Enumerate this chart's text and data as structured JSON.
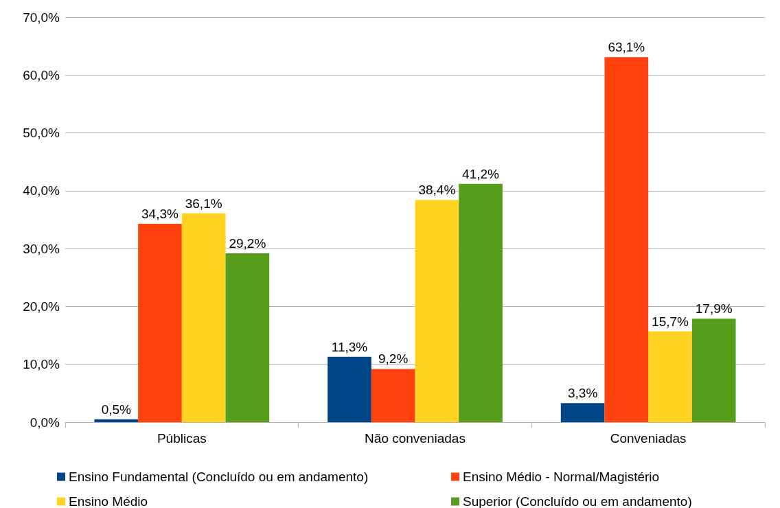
{
  "chart_data": {
    "type": "bar",
    "categories": [
      "Públicas",
      "Não conveniadas",
      "Conveniadas"
    ],
    "series": [
      {
        "name": "Ensino Fundamental (Concluído ou em andamento)",
        "color": "#004586",
        "values": [
          0.5,
          11.3,
          3.3
        ],
        "value_labels": [
          "0,5%",
          "11,3%",
          "3,3%"
        ]
      },
      {
        "name": "Ensino Médio - Normal/Magistério",
        "color": "#ff420e",
        "values": [
          34.3,
          9.2,
          63.1
        ],
        "value_labels": [
          "34,3%",
          "9,2%",
          "63,1%"
        ]
      },
      {
        "name": "Ensino Médio",
        "color": "#ffd320",
        "values": [
          36.1,
          38.4,
          15.7
        ],
        "value_labels": [
          "36,1%",
          "38,4%",
          "15,7%"
        ]
      },
      {
        "name": "Superior (Concluído ou em andamento)",
        "color": "#579d1c",
        "values": [
          29.2,
          41.2,
          17.9
        ],
        "value_labels": [
          "29,2%",
          "41,2%",
          "17,9%"
        ]
      }
    ],
    "ylim": [
      0,
      70
    ],
    "yticks": [
      {
        "value": 0,
        "label": "0,0%"
      },
      {
        "value": 10,
        "label": "10,0%"
      },
      {
        "value": 20,
        "label": "20,0%"
      },
      {
        "value": 30,
        "label": "30,0%"
      },
      {
        "value": 40,
        "label": "40,0%"
      },
      {
        "value": 50,
        "label": "50,0%"
      },
      {
        "value": 60,
        "label": "60,0%"
      },
      {
        "value": 70,
        "label": "70,0%"
      }
    ],
    "grid": "y",
    "legend": "bottom"
  }
}
